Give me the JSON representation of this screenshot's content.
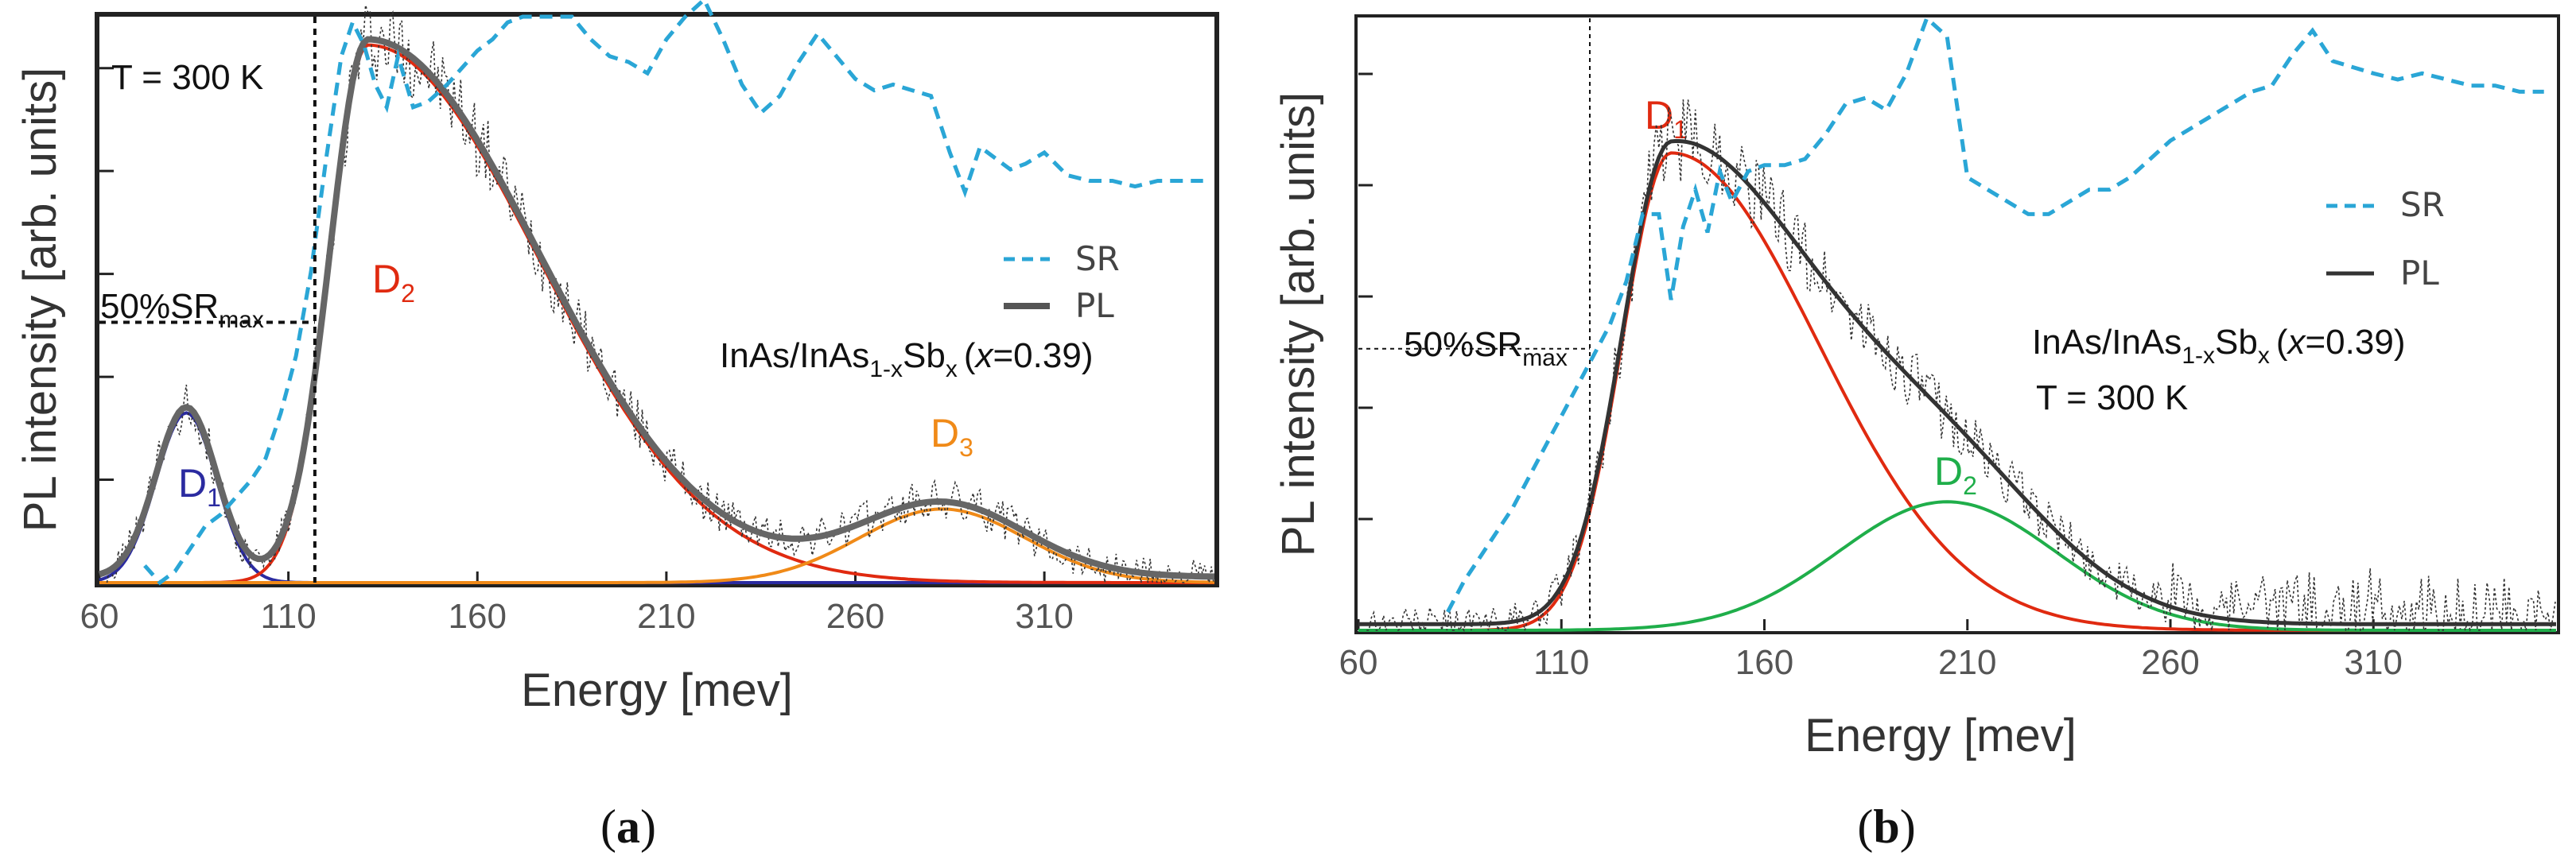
{
  "chart_data": [
    {
      "type": "line",
      "panel": "a",
      "caption_open": "(",
      "caption_letter": "a",
      "caption_close": ")",
      "xlabel": "Energy [mev]",
      "ylabel": "PL intensity [arb. units]",
      "xlim": [
        60,
        355
      ],
      "ylim": [
        0,
        1.0
      ],
      "xticks": [
        60,
        110,
        160,
        210,
        260,
        310
      ],
      "temperature": "T = 300 K",
      "sample_main": "InAs/InAs",
      "sample_sub": "1-x",
      "sample_sb": "Sb",
      "sample_sub2": "x",
      "sample_x": "x",
      "sample_rest": "=0.39)",
      "sample_open": "(",
      "threshold_label": "50%SR",
      "threshold_sub": "max",
      "threshold_energy": 117,
      "threshold_level": 0.46,
      "legend": [
        "SR",
        "PL"
      ],
      "peaks": [
        {
          "name": "D",
          "sub": "1",
          "center": 83,
          "amp": 0.3,
          "sigma": 8,
          "color": "#2b2ba0"
        },
        {
          "name": "D",
          "sub": "2",
          "center": 131,
          "amp": 0.95,
          "sigma": 10,
          "sigma_hi": 45,
          "color": "#e02a10"
        },
        {
          "name": "D",
          "sub": "3",
          "center": 283,
          "amp": 0.13,
          "sigma": 22,
          "color": "#f08a18"
        }
      ],
      "sr_x": [
        72,
        76,
        80,
        84,
        88,
        92,
        96,
        100,
        104,
        108,
        112,
        116,
        120,
        124,
        127,
        130,
        133,
        136,
        139,
        143,
        147,
        152,
        156,
        160,
        164,
        168,
        172,
        176,
        180,
        185,
        190,
        195,
        200,
        205,
        210,
        215,
        220,
        225,
        230,
        235,
        240,
        245,
        250,
        255,
        260,
        265,
        270,
        275,
        280,
        285,
        289,
        293,
        297,
        301,
        305,
        310,
        316,
        322,
        328,
        334,
        340,
        346,
        352
      ],
      "sr_y": [
        0.03,
        0.0,
        0.02,
        0.06,
        0.1,
        0.12,
        0.15,
        0.18,
        0.22,
        0.3,
        0.4,
        0.55,
        0.75,
        0.93,
        0.99,
        0.95,
        0.88,
        0.84,
        0.93,
        0.84,
        0.85,
        0.88,
        0.91,
        0.94,
        0.96,
        0.99,
        1.0,
        1.0,
        1.0,
        1.0,
        0.96,
        0.93,
        0.92,
        0.9,
        0.96,
        1.0,
        1.03,
        0.96,
        0.88,
        0.83,
        0.86,
        0.92,
        0.97,
        0.93,
        0.89,
        0.87,
        0.88,
        0.87,
        0.86,
        0.76,
        0.69,
        0.77,
        0.75,
        0.73,
        0.74,
        0.76,
        0.72,
        0.71,
        0.71,
        0.7,
        0.71,
        0.71,
        0.71
      ]
    },
    {
      "type": "line",
      "panel": "b",
      "caption_open": "(",
      "caption_letter": "b",
      "caption_close": ")",
      "xlabel": "Energy [mev]",
      "ylabel": "PL intensity [arb. units]",
      "xlim": [
        60,
        355
      ],
      "ylim": [
        0,
        1.0
      ],
      "xticks": [
        60,
        110,
        160,
        210,
        260,
        310
      ],
      "temperature": "T = 300 K",
      "sample_main": "InAs/InAs",
      "sample_sub": "1-x",
      "sample_sb": "Sb",
      "sample_sub2": "x",
      "sample_x": "x",
      "sample_rest": "=0.39)",
      "sample_open": "(",
      "threshold_label": "50%SR",
      "threshold_sub": "max",
      "threshold_energy": 117,
      "threshold_level": 0.46,
      "legend": [
        "SR",
        "PL"
      ],
      "peaks": [
        {
          "name": "D",
          "sub": "1",
          "center": 137,
          "amp": 0.78,
          "sigma": 12,
          "sigma_hi": 36,
          "color": "#e02a10"
        },
        {
          "name": "D",
          "sub": "2",
          "center": 205,
          "amp": 0.21,
          "sigma": 27,
          "color": "#1fae4a"
        }
      ],
      "sr_x": [
        82,
        86,
        90,
        94,
        98,
        102,
        106,
        110,
        114,
        118,
        122,
        126,
        130,
        134,
        137,
        140,
        143,
        146,
        149,
        152,
        156,
        160,
        165,
        170,
        175,
        180,
        185,
        190,
        195,
        200,
        205,
        210,
        215,
        220,
        225,
        230,
        235,
        240,
        245,
        250,
        255,
        260,
        265,
        270,
        275,
        280,
        285,
        290,
        295,
        300,
        305,
        310,
        316,
        322,
        328,
        334,
        340,
        346,
        352
      ],
      "sr_y": [
        0.03,
        0.08,
        0.12,
        0.16,
        0.2,
        0.25,
        0.3,
        0.35,
        0.4,
        0.45,
        0.5,
        0.57,
        0.68,
        0.68,
        0.54,
        0.66,
        0.72,
        0.65,
        0.75,
        0.7,
        0.75,
        0.76,
        0.76,
        0.77,
        0.81,
        0.86,
        0.87,
        0.85,
        0.91,
        1.0,
        0.97,
        0.74,
        0.72,
        0.7,
        0.68,
        0.68,
        0.7,
        0.72,
        0.72,
        0.74,
        0.77,
        0.8,
        0.82,
        0.84,
        0.86,
        0.88,
        0.89,
        0.94,
        0.98,
        0.93,
        0.92,
        0.91,
        0.9,
        0.91,
        0.9,
        0.89,
        0.89,
        0.88,
        0.88
      ]
    }
  ]
}
